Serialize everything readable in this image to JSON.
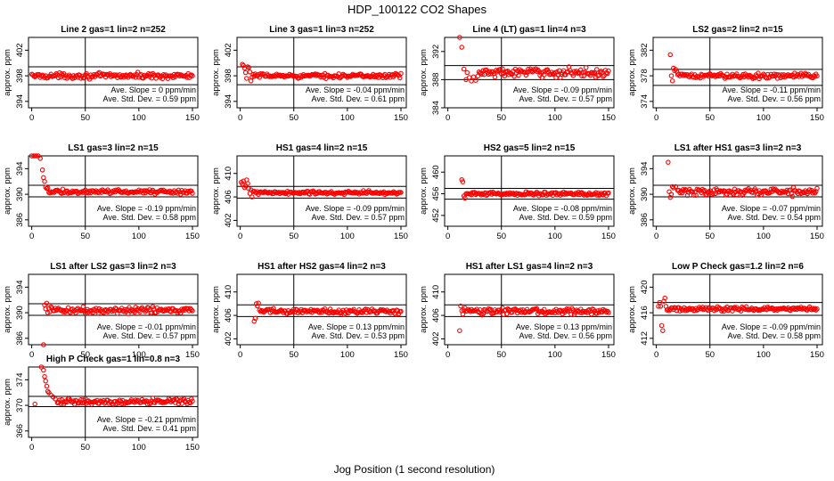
{
  "main_title": "HDP_100122  CO2 Shapes",
  "x_label": "Jog Position (1 second resolution)",
  "chart_data": [
    {
      "type": "scatter",
      "title": "Line 2 gas=1 lin=2 n=252",
      "ylabel": "approx. ppm",
      "xlim": [
        -3,
        155
      ],
      "ylim": [
        393,
        404
      ],
      "yticks": [
        394,
        398,
        402
      ],
      "xticks": [
        0,
        50,
        100,
        150
      ],
      "hlines": [
        399.4,
        396.6
      ],
      "vline": 50,
      "base": 398.0,
      "noise": 0.25,
      "lead": [],
      "slope_label": "Ave. Slope =  0  ppm/min",
      "sd_label": "Ave. Std. Dev. =  0.59  ppm"
    },
    {
      "type": "scatter",
      "title": "Line 3 gas=1 lin=3 n=252",
      "ylabel": "approx. ppm",
      "xlim": [
        -3,
        155
      ],
      "ylim": [
        393,
        404
      ],
      "yticks": [
        394,
        398,
        402
      ],
      "xticks": [
        0,
        50,
        100,
        150
      ],
      "hlines": [
        399.4,
        396.6
      ],
      "vline": 50,
      "base": 398.0,
      "noise": 0.2,
      "lead": [
        [
          2,
          399.8
        ],
        [
          3,
          399.6
        ],
        [
          4,
          399.2
        ],
        [
          5,
          398.5
        ],
        [
          6,
          397.6
        ],
        [
          7,
          399.4
        ],
        [
          8,
          399.3
        ],
        [
          9,
          398.6
        ],
        [
          10,
          397.2
        ],
        [
          11,
          397.8
        ],
        [
          12,
          398.2
        ],
        [
          13,
          397.9
        ]
      ],
      "slope_label": "Ave. Slope =  -0.04  ppm/min",
      "sd_label": "Ave. Std. Dev. =  0.61  ppm"
    },
    {
      "type": "scatter",
      "title": "Line 4 (LT) gas=1 lin=4 n=3",
      "ylabel": "approx. ppm",
      "xlim": [
        -3,
        155
      ],
      "ylim": [
        384,
        394
      ],
      "yticks": [
        384,
        388,
        392
      ],
      "xticks": [
        0,
        50,
        100,
        150
      ],
      "hlines": [
        390.0,
        388.0
      ],
      "vline": 50,
      "base": 389.0,
      "noise": 0.4,
      "lead": [
        [
          11,
          394.0
        ],
        [
          13,
          392.6
        ],
        [
          15,
          389.5
        ],
        [
          17,
          388.0
        ],
        [
          18,
          389.0
        ],
        [
          20,
          388.3
        ],
        [
          22,
          387.8
        ],
        [
          24,
          388.4
        ],
        [
          26,
          387.9
        ],
        [
          28,
          388.5
        ]
      ],
      "slope_label": "Ave. Slope =  -0.09  ppm/min",
      "sd_label": "Ave. Std. Dev. =  0.57  ppm"
    },
    {
      "type": "scatter",
      "title": "LS2 gas=2 lin=2 n=15",
      "ylabel": "approx. ppm",
      "xlim": [
        -3,
        155
      ],
      "ylim": [
        373,
        384
      ],
      "yticks": [
        374,
        378,
        382
      ],
      "xticks": [
        0,
        50,
        100,
        150
      ],
      "hlines": [
        379.0,
        376.5
      ],
      "vline": 50,
      "base": 378.0,
      "noise": 0.25,
      "lead": [
        [
          13,
          381.3
        ],
        [
          14,
          378.0
        ],
        [
          15,
          377.2
        ],
        [
          16,
          379.2
        ],
        [
          17,
          378.8
        ],
        [
          18,
          379.0
        ],
        [
          19,
          378.7
        ]
      ],
      "slope_label": "Ave. Slope =  -0.11  ppm/min",
      "sd_label": "Ave. Std. Dev. =  0.56  ppm"
    },
    {
      "type": "scatter",
      "title": "LS1 gas=3 lin=2 n=15",
      "ylabel": "approx. ppm",
      "xlim": [
        -3,
        155
      ],
      "ylim": [
        385,
        396
      ],
      "yticks": [
        386,
        390,
        394
      ],
      "xticks": [
        0,
        50,
        100,
        150
      ],
      "hlines": [
        391.4,
        389.6
      ],
      "vline": 50,
      "base": 390.4,
      "noise": 0.2,
      "lead": [
        [
          0,
          396.0
        ],
        [
          2,
          396.0
        ],
        [
          4,
          396.0
        ],
        [
          6,
          396.0
        ],
        [
          8,
          395.6
        ],
        [
          10,
          393.8
        ],
        [
          11,
          392.6
        ],
        [
          12,
          392.0
        ],
        [
          13,
          391.1
        ],
        [
          14,
          390.9
        ],
        [
          15,
          391.0
        ]
      ],
      "slope_label": "Ave. Slope =  -0.19  ppm/min",
      "sd_label": "Ave. Std. Dev. =  0.58  ppm"
    },
    {
      "type": "scatter",
      "title": "HS1 gas=4 lin=2 n=15",
      "ylabel": "approx. ppm",
      "xlim": [
        -3,
        155
      ],
      "ylim": [
        401,
        413
      ],
      "yticks": [
        402,
        406,
        410
      ],
      "xticks": [
        0,
        50,
        100,
        150
      ],
      "hlines": [
        407.8,
        405.8
      ],
      "vline": 50,
      "base": 406.7,
      "noise": 0.2,
      "lead": [
        [
          1,
          408.5
        ],
        [
          2,
          408.2
        ],
        [
          3,
          408.7
        ],
        [
          4,
          407.6
        ],
        [
          5,
          407.9
        ],
        [
          6,
          408.9
        ],
        [
          7,
          408.3
        ],
        [
          8,
          407.4
        ],
        [
          9,
          406.6
        ],
        [
          10,
          407.2
        ],
        [
          11,
          406.0
        ],
        [
          12,
          406.9
        ]
      ],
      "slope_label": "Ave. Slope =  -0.09  ppm/min",
      "sd_label": "Ave. Std. Dev. =  0.57  ppm"
    },
    {
      "type": "scatter",
      "title": "HS2 gas=5 lin=2 n=15",
      "ylabel": "approx. ppm",
      "xlim": [
        -3,
        155
      ],
      "ylim": [
        450,
        463
      ],
      "yticks": [
        452,
        456,
        460
      ],
      "xticks": [
        0,
        50,
        100,
        150
      ],
      "hlines": [
        457.0,
        455.0
      ],
      "vline": 50,
      "base": 456.0,
      "noise": 0.2,
      "lead": [
        [
          13,
          458.6
        ],
        [
          14,
          458.2
        ],
        [
          15,
          455.6
        ],
        [
          16,
          455.2
        ],
        [
          17,
          456.0
        ]
      ],
      "slope_label": "Ave. Slope =  -0.08  ppm/min",
      "sd_label": "Ave. Std. Dev. =  0.59  ppm"
    },
    {
      "type": "scatter",
      "title": "LS1 after HS1 gas=3 lin=2 n=3",
      "ylabel": "approx. ppm",
      "xlim": [
        -3,
        155
      ],
      "ylim": [
        385,
        396
      ],
      "yticks": [
        386,
        390,
        394
      ],
      "xticks": [
        0,
        50,
        100,
        150
      ],
      "hlines": [
        391.4,
        389.6
      ],
      "vline": 50,
      "base": 390.4,
      "noise": 0.35,
      "lead": [
        [
          11,
          395.0
        ],
        [
          12,
          390.4
        ],
        [
          13,
          389.5
        ],
        [
          14,
          390.0
        ],
        [
          15,
          391.2
        ],
        [
          16,
          391.0
        ],
        [
          18,
          391.2
        ],
        [
          20,
          390.6
        ]
      ],
      "slope_label": "Ave. Slope =  -0.07  ppm/min",
      "sd_label": "Ave. Std. Dev. =  0.54  ppm"
    },
    {
      "type": "scatter",
      "title": "LS1 after LS2 gas=3 lin=2 n=3",
      "ylabel": "approx. ppm",
      "xlim": [
        -3,
        155
      ],
      "ylim": [
        385,
        396
      ],
      "yticks": [
        386,
        390,
        394
      ],
      "xticks": [
        0,
        50,
        100,
        150
      ],
      "hlines": [
        391.4,
        389.6
      ],
      "vline": 50,
      "base": 390.4,
      "noise": 0.3,
      "lead": [
        [
          11,
          385.0
        ],
        [
          12,
          391.2
        ],
        [
          13,
          390.6
        ],
        [
          14,
          391.5
        ],
        [
          15,
          390.0
        ]
      ],
      "slope_label": "Ave. Slope =  -0.01  ppm/min",
      "sd_label": "Ave. Std. Dev. =  0.57  ppm"
    },
    {
      "type": "scatter",
      "title": "HS1 after HS2 gas=4 lin=2 n=3",
      "ylabel": "approx. ppm",
      "xlim": [
        -3,
        155
      ],
      "ylim": [
        401,
        413
      ],
      "yticks": [
        402,
        406,
        410
      ],
      "xticks": [
        0,
        50,
        100,
        150
      ],
      "hlines": [
        407.8,
        405.8
      ],
      "vline": 50,
      "base": 406.7,
      "noise": 0.3,
      "lead": [
        [
          13,
          405.0
        ],
        [
          14,
          405.5
        ],
        [
          15,
          408.0
        ],
        [
          16,
          407.6
        ],
        [
          17,
          408.1
        ],
        [
          18,
          406.9
        ]
      ],
      "slope_label": "Ave. Slope =  0.13  ppm/min",
      "sd_label": "Ave. Std. Dev. =  0.53  ppm"
    },
    {
      "type": "scatter",
      "title": "HS1 after LS1 gas=4 lin=2 n=3",
      "ylabel": "approx. ppm",
      "xlim": [
        -3,
        155
      ],
      "ylim": [
        401,
        413
      ],
      "yticks": [
        402,
        406,
        410
      ],
      "xticks": [
        0,
        50,
        100,
        150
      ],
      "hlines": [
        407.8,
        405.8
      ],
      "vline": 50,
      "base": 406.7,
      "noise": 0.3,
      "lead": [
        [
          11,
          403.4
        ],
        [
          12,
          407.6
        ],
        [
          13,
          406.8
        ],
        [
          14,
          406.2
        ],
        [
          15,
          406.9
        ]
      ],
      "slope_label": "Ave. Slope =  0.13  ppm/min",
      "sd_label": "Ave. Std. Dev. =  0.56  ppm"
    },
    {
      "type": "scatter",
      "title": "Low P Check gas=1.2 lin=2 n=6",
      "ylabel": "approx. ppm",
      "xlim": [
        -3,
        155
      ],
      "ylim": [
        411,
        422
      ],
      "yticks": [
        412,
        416,
        420
      ],
      "xticks": [
        0,
        50,
        100,
        150
      ],
      "hlines": [
        417.6,
        415.6
      ],
      "vline": 50,
      "base": 416.6,
      "noise": 0.2,
      "lead": [
        [
          2,
          417.0
        ],
        [
          3,
          417.6
        ],
        [
          4,
          417.0
        ],
        [
          5,
          414.0
        ],
        [
          6,
          413.2
        ],
        [
          7,
          417.8
        ],
        [
          8,
          418.3
        ],
        [
          9,
          417.0
        ]
      ],
      "slope_label": "Ave. Slope =  -0.09  ppm/min",
      "sd_label": "Ave. Std. Dev. =  0.58  ppm"
    },
    {
      "type": "scatter",
      "title": "High P Check gas=1 lin=0.8 n=3",
      "ylabel": "approx. ppm",
      "xlim": [
        -3,
        155
      ],
      "ylim": [
        365,
        376
      ],
      "yticks": [
        366,
        370,
        374
      ],
      "xticks": [
        0,
        50,
        100,
        150
      ],
      "hlines": [
        371.4,
        369.8
      ],
      "vline": 50,
      "base": 370.6,
      "noise": 0.25,
      "lead": [
        [
          3,
          370.2
        ],
        [
          9,
          376.0
        ],
        [
          11,
          375.5
        ],
        [
          12,
          374.5
        ],
        [
          13,
          373.8
        ],
        [
          14,
          373.0
        ],
        [
          15,
          372.2
        ],
        [
          16,
          372.0
        ],
        [
          18,
          371.6
        ],
        [
          20,
          371.3
        ],
        [
          22,
          371.0
        ],
        [
          24,
          370.4
        ]
      ],
      "slope_label": "Ave. Slope =  -0.21  ppm/min",
      "sd_label": "Ave. Std. Dev. =  0.41  ppm"
    }
  ],
  "colors": {
    "points": "#ff0000",
    "axis": "#000000"
  }
}
